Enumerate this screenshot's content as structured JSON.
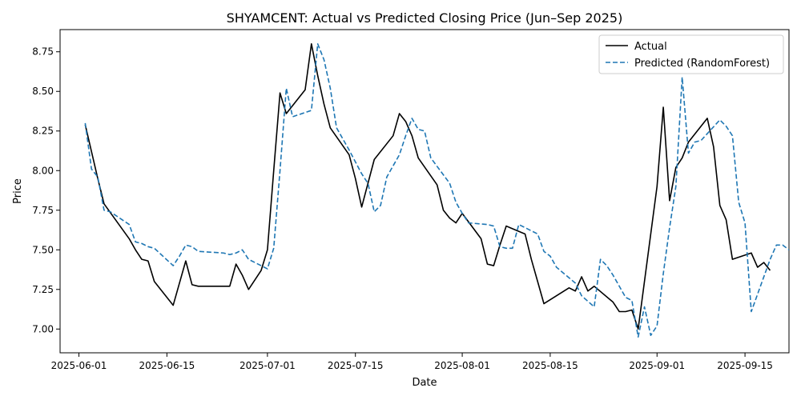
{
  "chart_data": {
    "type": "line",
    "title": "SHYAMCENT: Actual vs Predicted Closing Price (Jun–Sep 2025)",
    "xlabel": "Date",
    "ylabel": "Price",
    "x_ticks": [
      "2025-06-01",
      "2025-06-15",
      "2025-07-01",
      "2025-07-15",
      "2025-08-01",
      "2025-08-15",
      "2025-09-01",
      "2025-09-15"
    ],
    "y_ticks": [
      "7.00",
      "7.25",
      "7.50",
      "7.75",
      "8.00",
      "8.25",
      "8.50",
      "8.75"
    ],
    "xlim": [
      "2025-05-29",
      "2025-09-22"
    ],
    "ylim": [
      6.85,
      8.89
    ],
    "grid": false,
    "legend_position": "top-right",
    "series": [
      {
        "name": "Actual",
        "color": "#000000",
        "style": "solid",
        "points": [
          [
            "2025-06-02",
            8.29
          ],
          [
            "2025-06-03",
            8.12
          ],
          [
            "2025-06-04",
            7.95
          ],
          [
            "2025-06-05",
            7.79
          ],
          [
            "2025-06-09",
            7.57
          ],
          [
            "2025-06-10",
            7.5
          ],
          [
            "2025-06-11",
            7.44
          ],
          [
            "2025-06-12",
            7.43
          ],
          [
            "2025-06-13",
            7.3
          ],
          [
            "2025-06-16",
            7.15
          ],
          [
            "2025-06-18",
            7.43
          ],
          [
            "2025-06-19",
            7.28
          ],
          [
            "2025-06-20",
            7.27
          ],
          [
            "2025-06-23",
            7.27
          ],
          [
            "2025-06-24",
            7.27
          ],
          [
            "2025-06-25",
            7.27
          ],
          [
            "2025-06-26",
            7.41
          ],
          [
            "2025-06-27",
            7.34
          ],
          [
            "2025-06-28",
            7.25
          ],
          [
            "2025-06-30",
            7.37
          ],
          [
            "2025-07-01",
            7.5
          ],
          [
            "2025-07-02",
            8.0
          ],
          [
            "2025-07-03",
            8.49
          ],
          [
            "2025-07-04",
            8.36
          ],
          [
            "2025-07-07",
            8.51
          ],
          [
            "2025-07-08",
            8.8
          ],
          [
            "2025-07-09",
            8.6
          ],
          [
            "2025-07-10",
            8.42
          ],
          [
            "2025-07-11",
            8.27
          ],
          [
            "2025-07-14",
            8.1
          ],
          [
            "2025-07-15",
            7.95
          ],
          [
            "2025-07-16",
            7.77
          ],
          [
            "2025-07-18",
            8.07
          ],
          [
            "2025-07-21",
            8.22
          ],
          [
            "2025-07-22",
            8.36
          ],
          [
            "2025-07-23",
            8.31
          ],
          [
            "2025-07-24",
            8.22
          ],
          [
            "2025-07-25",
            8.08
          ],
          [
            "2025-07-28",
            7.91
          ],
          [
            "2025-07-29",
            7.75
          ],
          [
            "2025-07-30",
            7.7
          ],
          [
            "2025-07-31",
            7.67
          ],
          [
            "2025-08-01",
            7.73
          ],
          [
            "2025-08-04",
            7.57
          ],
          [
            "2025-08-05",
            7.41
          ],
          [
            "2025-08-06",
            7.4
          ],
          [
            "2025-08-07",
            7.53
          ],
          [
            "2025-08-08",
            7.65
          ],
          [
            "2025-08-11",
            7.6
          ],
          [
            "2025-08-12",
            7.44
          ],
          [
            "2025-08-13",
            7.3
          ],
          [
            "2025-08-14",
            7.16
          ],
          [
            "2025-08-18",
            7.26
          ],
          [
            "2025-08-19",
            7.24
          ],
          [
            "2025-08-20",
            7.33
          ],
          [
            "2025-08-21",
            7.24
          ],
          [
            "2025-08-22",
            7.27
          ],
          [
            "2025-08-25",
            7.17
          ],
          [
            "2025-08-26",
            7.11
          ],
          [
            "2025-08-27",
            7.11
          ],
          [
            "2025-08-28",
            7.12
          ],
          [
            "2025-08-29",
            7.0
          ],
          [
            "2025-09-01",
            7.9
          ],
          [
            "2025-09-02",
            8.4
          ],
          [
            "2025-09-03",
            7.81
          ],
          [
            "2025-09-04",
            8.02
          ],
          [
            "2025-09-05",
            8.08
          ],
          [
            "2025-09-06",
            8.18
          ],
          [
            "2025-09-09",
            8.33
          ],
          [
            "2025-09-10",
            8.15
          ],
          [
            "2025-09-11",
            7.78
          ],
          [
            "2025-09-12",
            7.69
          ],
          [
            "2025-09-13",
            7.44
          ],
          [
            "2025-09-16",
            7.48
          ],
          [
            "2025-09-17",
            7.39
          ],
          [
            "2025-09-18",
            7.42
          ],
          [
            "2025-09-19",
            7.37
          ]
        ]
      },
      {
        "name": "Predicted (RandomForest)",
        "color": "#1f77b4",
        "style": "dashed",
        "points": [
          [
            "2025-06-02",
            8.3
          ],
          [
            "2025-06-03",
            8.01
          ],
          [
            "2025-06-04",
            7.96
          ],
          [
            "2025-06-05",
            7.75
          ],
          [
            "2025-06-06",
            7.74
          ],
          [
            "2025-06-09",
            7.66
          ],
          [
            "2025-06-10",
            7.55
          ],
          [
            "2025-06-11",
            7.54
          ],
          [
            "2025-06-12",
            7.52
          ],
          [
            "2025-06-13",
            7.51
          ],
          [
            "2025-06-16",
            7.4
          ],
          [
            "2025-06-17",
            7.46
          ],
          [
            "2025-06-18",
            7.53
          ],
          [
            "2025-06-19",
            7.52
          ],
          [
            "2025-06-20",
            7.49
          ],
          [
            "2025-06-24",
            7.48
          ],
          [
            "2025-06-25",
            7.47
          ],
          [
            "2025-06-26",
            7.48
          ],
          [
            "2025-06-27",
            7.5
          ],
          [
            "2025-06-28",
            7.44
          ],
          [
            "2025-06-30",
            7.4
          ],
          [
            "2025-07-01",
            7.38
          ],
          [
            "2025-07-02",
            7.51
          ],
          [
            "2025-07-03",
            8.0
          ],
          [
            "2025-07-04",
            8.52
          ],
          [
            "2025-07-05",
            8.34
          ],
          [
            "2025-07-08",
            8.38
          ],
          [
            "2025-07-09",
            8.8
          ],
          [
            "2025-07-10",
            8.7
          ],
          [
            "2025-07-11",
            8.52
          ],
          [
            "2025-07-12",
            8.27
          ],
          [
            "2025-07-14",
            8.13
          ],
          [
            "2025-07-16",
            7.98
          ],
          [
            "2025-07-17",
            7.92
          ],
          [
            "2025-07-18",
            7.74
          ],
          [
            "2025-07-19",
            7.78
          ],
          [
            "2025-07-20",
            7.96
          ],
          [
            "2025-07-22",
            8.1
          ],
          [
            "2025-07-23",
            8.22
          ],
          [
            "2025-07-24",
            8.33
          ],
          [
            "2025-07-25",
            8.26
          ],
          [
            "2025-07-26",
            8.25
          ],
          [
            "2025-07-27",
            8.08
          ],
          [
            "2025-07-30",
            7.92
          ],
          [
            "2025-07-31",
            7.8
          ],
          [
            "2025-08-01",
            7.73
          ],
          [
            "2025-08-02",
            7.67
          ],
          [
            "2025-08-05",
            7.66
          ],
          [
            "2025-08-06",
            7.65
          ],
          [
            "2025-08-07",
            7.52
          ],
          [
            "2025-08-08",
            7.51
          ],
          [
            "2025-08-09",
            7.51
          ],
          [
            "2025-08-10",
            7.66
          ],
          [
            "2025-08-13",
            7.6
          ],
          [
            "2025-08-14",
            7.49
          ],
          [
            "2025-08-15",
            7.46
          ],
          [
            "2025-08-16",
            7.39
          ],
          [
            "2025-08-19",
            7.29
          ],
          [
            "2025-08-20",
            7.21
          ],
          [
            "2025-08-22",
            7.14
          ],
          [
            "2025-08-23",
            7.44
          ],
          [
            "2025-08-24",
            7.4
          ],
          [
            "2025-08-25",
            7.34
          ],
          [
            "2025-08-27",
            7.2
          ],
          [
            "2025-08-28",
            7.18
          ],
          [
            "2025-08-29",
            6.95
          ],
          [
            "2025-08-30",
            7.14
          ],
          [
            "2025-08-31",
            6.96
          ],
          [
            "2025-09-01",
            7.02
          ],
          [
            "2025-09-02",
            7.35
          ],
          [
            "2025-09-03",
            7.64
          ],
          [
            "2025-09-04",
            7.9
          ],
          [
            "2025-09-05",
            8.59
          ],
          [
            "2025-09-06",
            8.11
          ],
          [
            "2025-09-07",
            8.18
          ],
          [
            "2025-09-08",
            8.19
          ],
          [
            "2025-09-11",
            8.32
          ],
          [
            "2025-09-12",
            8.28
          ],
          [
            "2025-09-13",
            8.22
          ],
          [
            "2025-09-14",
            7.8
          ],
          [
            "2025-09-15",
            7.67
          ],
          [
            "2025-09-16",
            7.11
          ],
          [
            "2025-09-17",
            7.22
          ],
          [
            "2025-09-18",
            7.33
          ],
          [
            "2025-09-19",
            7.44
          ],
          [
            "2025-09-20",
            7.53
          ],
          [
            "2025-09-21",
            7.53
          ],
          [
            "2025-09-22",
            7.5
          ],
          [
            "2025-09-23",
            7.49
          ]
        ]
      }
    ]
  }
}
